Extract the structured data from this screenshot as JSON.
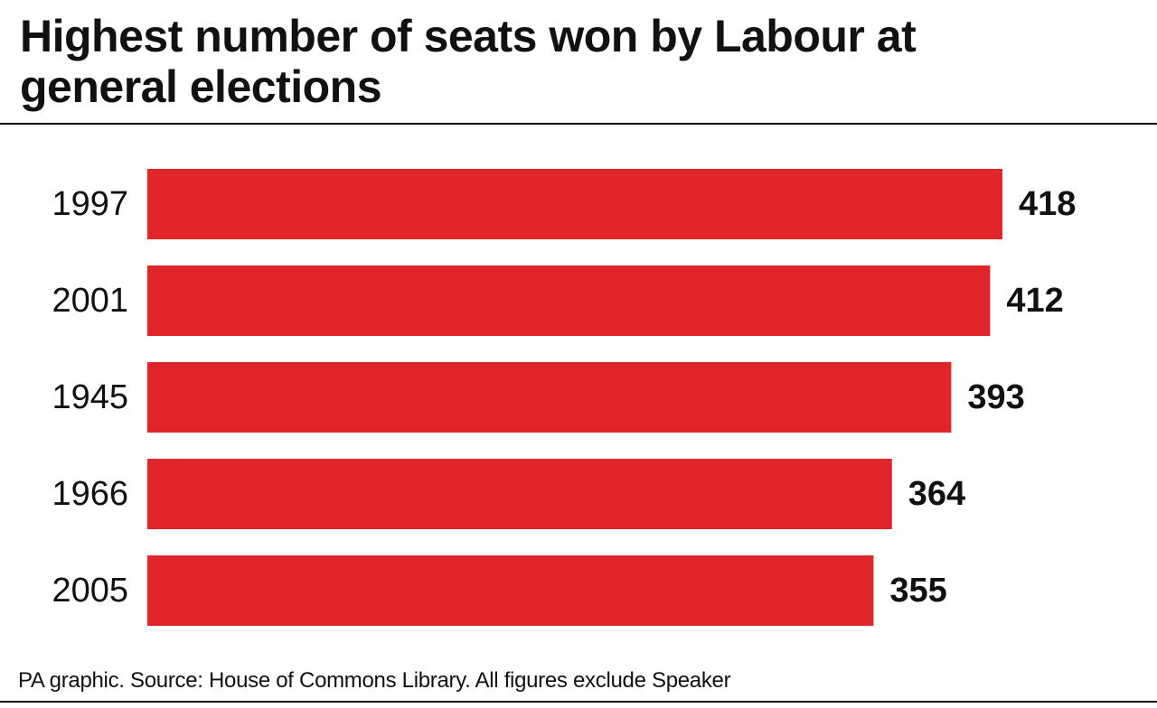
{
  "chart_data": {
    "type": "barh",
    "title": "Highest number of seats won by Labour at general elections",
    "categories": [
      "1997",
      "2001",
      "1945",
      "1966",
      "2005"
    ],
    "values": [
      418,
      412,
      393,
      364,
      355
    ],
    "color": "#e0262b",
    "source": "PA graphic. Source: House of Commons Library. All figures exclude Speaker"
  }
}
